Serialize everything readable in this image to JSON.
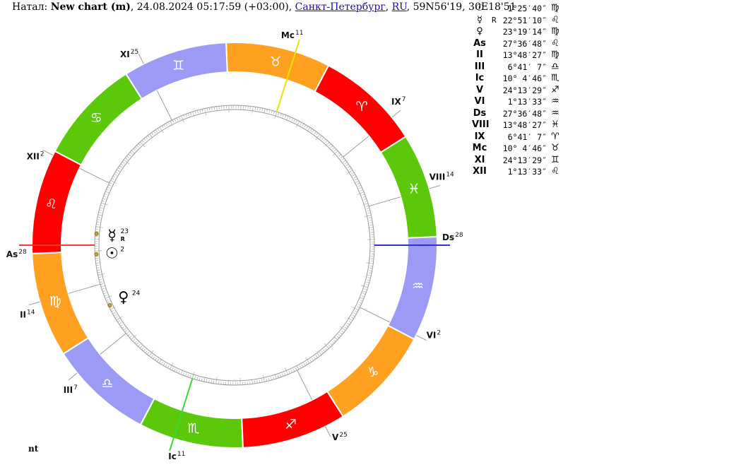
{
  "header": {
    "prefix": "Натал: ",
    "chart_name": "New chart (m)",
    "datetime": ", 24.08.2024 05:17:59 (+03:00), ",
    "city": "Санкт-Петербург",
    "sep": ", ",
    "country": "RU",
    "coords": ", 59N56'19, 30E18'51"
  },
  "footer": {
    "label": "nt"
  },
  "chart_data": {
    "type": "astrology-wheel",
    "ascendant_longitude": 147.61,
    "zodiac": [
      {
        "sign": "aries",
        "glyph": "♈",
        "color": "#ff0000"
      },
      {
        "sign": "taurus",
        "glyph": "♉",
        "color": "#ffa020"
      },
      {
        "sign": "gemini",
        "glyph": "♊",
        "color": "#9b9bf5"
      },
      {
        "sign": "cancer",
        "glyph": "♋",
        "color": "#5cc80a"
      },
      {
        "sign": "leo",
        "glyph": "♌",
        "color": "#ff0000"
      },
      {
        "sign": "virgo",
        "glyph": "♍",
        "color": "#ffa020"
      },
      {
        "sign": "libra",
        "glyph": "♎",
        "color": "#9b9bf5"
      },
      {
        "sign": "scorpio",
        "glyph": "♏",
        "color": "#5cc80a"
      },
      {
        "sign": "sagittarius",
        "glyph": "♐",
        "color": "#ff0000"
      },
      {
        "sign": "capricorn",
        "glyph": "♑",
        "color": "#ffa020"
      },
      {
        "sign": "aquarius",
        "glyph": "♒",
        "color": "#9b9bf5"
      },
      {
        "sign": "pisces",
        "glyph": "♓",
        "color": "#5cc80a"
      }
    ],
    "houses": [
      {
        "label": "As",
        "degree": "28",
        "longitude": 147.61,
        "axis": "#ff3333"
      },
      {
        "label": "II",
        "degree": "14",
        "longitude": 163.81
      },
      {
        "label": "III",
        "degree": "7",
        "longitude": 186.69
      },
      {
        "label": "Ic",
        "degree": "11",
        "longitude": 220.08,
        "axis": "#33dd33"
      },
      {
        "label": "V",
        "degree": "25",
        "longitude": 264.22
      },
      {
        "label": "VI",
        "degree": "2",
        "longitude": 301.23
      },
      {
        "label": "Ds",
        "degree": "28",
        "longitude": 327.61,
        "axis": "#3333cc"
      },
      {
        "label": "VIII",
        "degree": "14",
        "longitude": 343.81
      },
      {
        "label": "IX",
        "degree": "7",
        "longitude": 6.69
      },
      {
        "label": "Mc",
        "degree": "11",
        "longitude": 40.08,
        "axis": "#e6e600"
      },
      {
        "label": "XI",
        "degree": "25",
        "longitude": 84.22
      },
      {
        "label": "XII",
        "degree": "2",
        "longitude": 121.23
      }
    ],
    "planets": [
      {
        "name": "Sun",
        "glyph": "☉",
        "degree": "2",
        "longitude": 151.43,
        "retro": ""
      },
      {
        "name": "Mercury",
        "glyph": "☿",
        "degree": "23",
        "longitude": 142.85,
        "retro": "R"
      },
      {
        "name": "Venus",
        "glyph": "♀",
        "degree": "24",
        "longitude": 173.32,
        "retro": ""
      }
    ],
    "positions": [
      {
        "sym": "☉",
        "retro": "",
        "deg": "1°25′40″",
        "sign": "♍"
      },
      {
        "sym": "☿",
        "retro": "R",
        "deg": "22°51′10″",
        "sign": "♌"
      },
      {
        "sym": "♀",
        "retro": "",
        "deg": "23°19′14″",
        "sign": "♍"
      },
      {
        "sym": "As",
        "retro": "",
        "deg": "27°36′48″",
        "sign": "♌"
      },
      {
        "sym": "II",
        "retro": "",
        "deg": "13°48′27″",
        "sign": "♍"
      },
      {
        "sym": "III",
        "retro": "",
        "deg": "6°41′ 7″",
        "sign": "♎"
      },
      {
        "sym": "Ic",
        "retro": "",
        "deg": "10° 4′46″",
        "sign": "♏"
      },
      {
        "sym": "V",
        "retro": "",
        "deg": "24°13′29″",
        "sign": "♐"
      },
      {
        "sym": "VI",
        "retro": "",
        "deg": "1°13′33″",
        "sign": "♒"
      },
      {
        "sym": "Ds",
        "retro": "",
        "deg": "27°36′48″",
        "sign": "♒"
      },
      {
        "sym": "VIII",
        "retro": "",
        "deg": "13°48′27″",
        "sign": "♓"
      },
      {
        "sym": "IX",
        "retro": "",
        "deg": "6°41′ 7″",
        "sign": "♈"
      },
      {
        "sym": "Mc",
        "retro": "",
        "deg": "10° 4′46″",
        "sign": "♉"
      },
      {
        "sym": "XI",
        "retro": "",
        "deg": "24°13′29″",
        "sign": "♊"
      },
      {
        "sym": "XII",
        "retro": "",
        "deg": "1°13′33″",
        "sign": "♌"
      }
    ]
  }
}
